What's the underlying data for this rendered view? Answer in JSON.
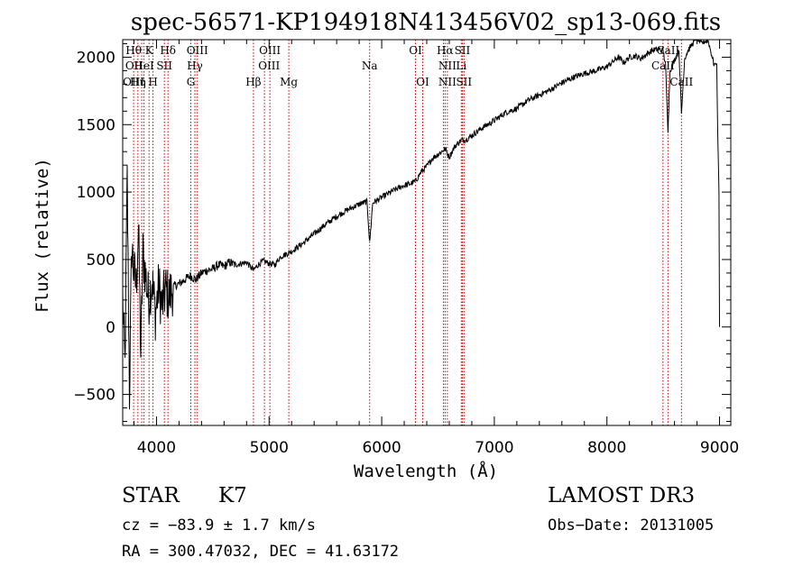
{
  "chart_data": {
    "type": "line",
    "title": "spec-56571-KP194918N413456V02_sp13-069.fits",
    "xlabel": "Wavelength (Å)",
    "ylabel": "Flux (relative)",
    "xlim": [
      3700,
      9100
    ],
    "ylim": [
      -730,
      2130
    ],
    "x_ticks": [
      4000,
      5000,
      6000,
      7000,
      8000,
      9000
    ],
    "y_ticks": [
      -500,
      0,
      500,
      1000,
      1500,
      2000
    ],
    "x_tick_labels": [
      "4000",
      "5000",
      "6000",
      "7000",
      "8000",
      "9000"
    ],
    "y_tick_labels": [
      "−500",
      "0",
      "500",
      "1000",
      "1500",
      "2000"
    ],
    "grid": false,
    "series": [
      {
        "name": "flux",
        "x": [
          3700,
          3720,
          3740,
          3760,
          3780,
          3800,
          3820,
          3840,
          3860,
          3880,
          3900,
          3930,
          3960,
          3990,
          4020,
          4050,
          4080,
          4110,
          4150,
          4200,
          4250,
          4300,
          4350,
          4400,
          4450,
          4500,
          4550,
          4600,
          4650,
          4700,
          4750,
          4800,
          4861,
          4900,
          4950,
          5000,
          5050,
          5100,
          5150,
          5200,
          5300,
          5400,
          5500,
          5600,
          5700,
          5800,
          5870,
          5893,
          5920,
          6000,
          6100,
          6200,
          6250,
          6300,
          6350,
          6400,
          6450,
          6500,
          6563,
          6600,
          6650,
          6700,
          6750,
          6800,
          6900,
          7000,
          7100,
          7200,
          7300,
          7400,
          7500,
          7600,
          7700,
          7800,
          7900,
          8000,
          8100,
          8150,
          8200,
          8250,
          8300,
          8350,
          8400,
          8450,
          8498,
          8520,
          8542,
          8560,
          8600,
          8640,
          8662,
          8690,
          8720,
          8760,
          8800,
          8840,
          8870,
          8900,
          8950,
          8975,
          8985,
          8995,
          9000
        ],
        "values": [
          200,
          -300,
          1100,
          -500,
          600,
          400,
          300,
          750,
          -200,
          550,
          400,
          200,
          350,
          100,
          300,
          150,
          280,
          220,
          300,
          320,
          350,
          380,
          350,
          400,
          420,
          430,
          460,
          450,
          480,
          460,
          470,
          480,
          420,
          460,
          490,
          470,
          460,
          520,
          540,
          560,
          620,
          690,
          760,
          820,
          870,
          910,
          930,
          620,
          920,
          960,
          1010,
          1050,
          1060,
          1080,
          1150,
          1190,
          1250,
          1280,
          1320,
          1260,
          1340,
          1380,
          1390,
          1420,
          1480,
          1530,
          1590,
          1620,
          1680,
          1720,
          1760,
          1810,
          1850,
          1880,
          1900,
          1930,
          2000,
          1960,
          2000,
          2010,
          1990,
          2020,
          2050,
          2060,
          2050,
          1950,
          1460,
          1900,
          1980,
          2050,
          1580,
          1990,
          2050,
          2100,
          2150,
          2100,
          2120,
          2120,
          1950,
          1950,
          1400,
          1000,
          0
        ]
      }
    ],
    "lines": [
      {
        "x": 3797,
        "label": "Hθ"
      },
      {
        "x": 3835,
        "label": "Hη"
      },
      {
        "x": 3869,
        "label": "OII"
      },
      {
        "x": 3889,
        "label": "HeI"
      },
      {
        "x": 3934,
        "label": "K"
      },
      {
        "x": 3969,
        "label": "H"
      },
      {
        "x": 4070,
        "label": "SII"
      },
      {
        "x": 4102,
        "label": "Hδ"
      },
      {
        "x": 4305,
        "label": "G"
      },
      {
        "x": 4341,
        "label": "Hγ"
      },
      {
        "x": 4363,
        "label": "OIII"
      },
      {
        "x": 4861,
        "label": "Hβ"
      },
      {
        "x": 4959,
        "label": "OIII"
      },
      {
        "x": 5007,
        "label": "OIII"
      },
      {
        "x": 5175,
        "label": "Mg"
      },
      {
        "x": 5893,
        "label": "Na"
      },
      {
        "x": 6300,
        "label": "OI"
      },
      {
        "x": 6364,
        "label": "OI"
      },
      {
        "x": 6548,
        "label": "NII"
      },
      {
        "x": 6563,
        "label": "Hα"
      },
      {
        "x": 6583,
        "label": "NII"
      },
      {
        "x": 6707,
        "label": "Li"
      },
      {
        "x": 6716,
        "label": "SII"
      },
      {
        "x": 6731,
        "label": "SII"
      },
      {
        "x": 8498,
        "label": "CaII"
      },
      {
        "x": 8542,
        "label": "CaII"
      },
      {
        "x": 8662,
        "label": "CaII"
      }
    ],
    "line_label_text": {
      "row1": [
        "Hθ",
        "K",
        "Hδ",
        "OIII",
        "OIII",
        "OI",
        "Hα",
        "SII",
        "CaII"
      ],
      "row2": [
        "OII",
        "HeI",
        "SII",
        "Hγ",
        "OIII",
        "Na",
        "NII",
        "Li",
        "CaII"
      ],
      "row3": [
        "OIII",
        "Hη",
        "H",
        "G",
        "Hβ",
        "Mg",
        "OI",
        "NII",
        "SII",
        "CaII"
      ]
    }
  },
  "info": {
    "class": "STAR",
    "subclass": "K7",
    "survey": "LAMOST DR3",
    "cz": "cz = −83.9 ± 1.7 km/s",
    "obs_date": "Obs−Date: 20131005",
    "coords": "RA = 300.47032, DEC =  41.63172"
  },
  "colors": {
    "spectrum": "#000000",
    "line_marker": "#cc0000",
    "axes": "#000000",
    "background": "#ffffff"
  }
}
